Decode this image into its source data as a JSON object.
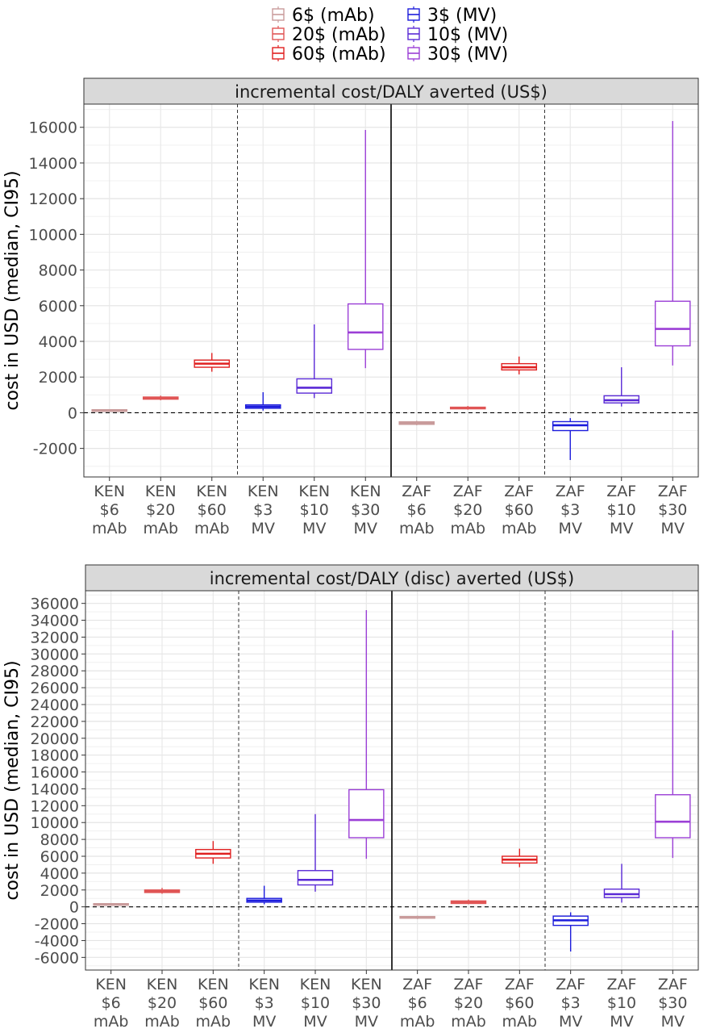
{
  "legend": {
    "items": [
      {
        "label": "6$ (mAb)",
        "color": "#c99b9b"
      },
      {
        "label": "20$ (mAb)",
        "color": "#e05555"
      },
      {
        "label": "60$ (mAb)",
        "color": "#e02020"
      },
      {
        "label": "3$ (MV)",
        "color": "#1c1cdc"
      },
      {
        "label": "10$ (MV)",
        "color": "#5a2ad6"
      },
      {
        "label": "30$ (MV)",
        "color": "#9b3fd6"
      }
    ]
  },
  "chart_data": [
    {
      "type": "boxplot",
      "title": "incremental cost/DALY averted (US$)",
      "ylabel": "cost in USD (median, CI95)",
      "ylim": [
        -3600,
        17300
      ],
      "yticks": [
        -2000,
        0,
        2000,
        4000,
        6000,
        8000,
        10000,
        12000,
        14000,
        16000
      ],
      "grid": true,
      "reference_line": 0,
      "categories": [
        "KEN\n$6\nmAb",
        "KEN\n$20\nmAb",
        "KEN\n$60\nmAb",
        "KEN\n$3\nMV",
        "KEN\n$10\nMV",
        "KEN\n$30\nMV",
        "ZAF\n$6\nmAb",
        "ZAF\n$20\nmAb",
        "ZAF\n$60\nmAb",
        "ZAF\n$3\nMV",
        "ZAF\n$10\nMV",
        "ZAF\n$30\nMV"
      ],
      "boxes": [
        {
          "series": "6$ (mAb)",
          "min": 80,
          "q1": 110,
          "median": 140,
          "q3": 170,
          "max": 200
        },
        {
          "series": "20$ (mAb)",
          "min": 700,
          "q1": 760,
          "median": 820,
          "q3": 880,
          "max": 960
        },
        {
          "series": "60$ (mAb)",
          "min": 2300,
          "q1": 2550,
          "median": 2750,
          "q3": 2950,
          "max": 3350
        },
        {
          "series": "3$ (MV)",
          "min": 120,
          "q1": 250,
          "median": 340,
          "q3": 440,
          "max": 1150
        },
        {
          "series": "10$ (MV)",
          "min": 820,
          "q1": 1100,
          "median": 1400,
          "q3": 1900,
          "max": 4950
        },
        {
          "series": "30$ (MV)",
          "min": 2500,
          "q1": 3550,
          "median": 4500,
          "q3": 6100,
          "max": 15850
        },
        {
          "series": "6$ (mAb)",
          "min": -700,
          "q1": -650,
          "median": -580,
          "q3": -510,
          "max": -450
        },
        {
          "series": "20$ (mAb)",
          "min": 170,
          "q1": 220,
          "median": 260,
          "q3": 310,
          "max": 380
        },
        {
          "series": "60$ (mAb)",
          "min": 2150,
          "q1": 2400,
          "median": 2550,
          "q3": 2750,
          "max": 3150
        },
        {
          "series": "3$ (MV)",
          "min": -2650,
          "q1": -1000,
          "median": -700,
          "q3": -500,
          "max": -300
        },
        {
          "series": "10$ (MV)",
          "min": 350,
          "q1": 550,
          "median": 700,
          "q3": 950,
          "max": 2550
        },
        {
          "series": "30$ (MV)",
          "min": 2650,
          "q1": 3750,
          "median": 4700,
          "q3": 6250,
          "max": 16350
        }
      ]
    },
    {
      "type": "boxplot",
      "title": "incremental cost/DALY (disc) averted (US$)",
      "ylabel": "cost in USD (median, CI95)",
      "ylim": [
        -7500,
        37500
      ],
      "yticks": [
        -6000,
        -4000,
        -2000,
        0,
        2000,
        4000,
        6000,
        8000,
        10000,
        12000,
        14000,
        16000,
        18000,
        20000,
        22000,
        24000,
        26000,
        28000,
        30000,
        32000,
        34000,
        36000
      ],
      "grid": true,
      "reference_line": 0,
      "categories": [
        "KEN\n$6\nmAb",
        "KEN\n$20\nmAb",
        "KEN\n$60\nmAb",
        "KEN\n$3\nMV",
        "KEN\n$10\nMV",
        "KEN\n$30\nMV",
        "ZAF\n$6\nmAb",
        "ZAF\n$20\nmAb",
        "ZAF\n$60\nmAb",
        "ZAF\n$3\nMV",
        "ZAF\n$10\nMV",
        "ZAF\n$30\nMV"
      ],
      "boxes": [
        {
          "series": "6$ (mAb)",
          "min": 200,
          "q1": 260,
          "median": 320,
          "q3": 380,
          "max": 440
        },
        {
          "series": "20$ (mAb)",
          "min": 1550,
          "q1": 1700,
          "median": 1850,
          "q3": 2000,
          "max": 2250
        },
        {
          "series": "60$ (mAb)",
          "min": 5100,
          "q1": 5800,
          "median": 6300,
          "q3": 6800,
          "max": 7800
        },
        {
          "series": "3$ (MV)",
          "min": 300,
          "q1": 550,
          "median": 750,
          "q3": 1000,
          "max": 2500
        },
        {
          "series": "10$ (MV)",
          "min": 1800,
          "q1": 2600,
          "median": 3200,
          "q3": 4300,
          "max": 11000
        },
        {
          "series": "30$ (MV)",
          "min": 5700,
          "q1": 8200,
          "median": 10300,
          "q3": 13900,
          "max": 35200
        },
        {
          "series": "6$ (mAb)",
          "min": -1450,
          "q1": -1350,
          "median": -1250,
          "q3": -1150,
          "max": -1050
        },
        {
          "series": "20$ (mAb)",
          "min": 300,
          "q1": 400,
          "median": 550,
          "q3": 700,
          "max": 850
        },
        {
          "series": "60$ (mAb)",
          "min": 4700,
          "q1": 5200,
          "median": 5600,
          "q3": 6000,
          "max": 6900
        },
        {
          "series": "3$ (MV)",
          "min": -5300,
          "q1": -2200,
          "median": -1600,
          "q3": -1100,
          "max": -650
        },
        {
          "series": "10$ (MV)",
          "min": 500,
          "q1": 1100,
          "median": 1500,
          "q3": 2100,
          "max": 5100
        },
        {
          "series": "30$ (MV)",
          "min": 5800,
          "q1": 8200,
          "median": 10100,
          "q3": 13300,
          "max": 32800
        }
      ]
    }
  ]
}
